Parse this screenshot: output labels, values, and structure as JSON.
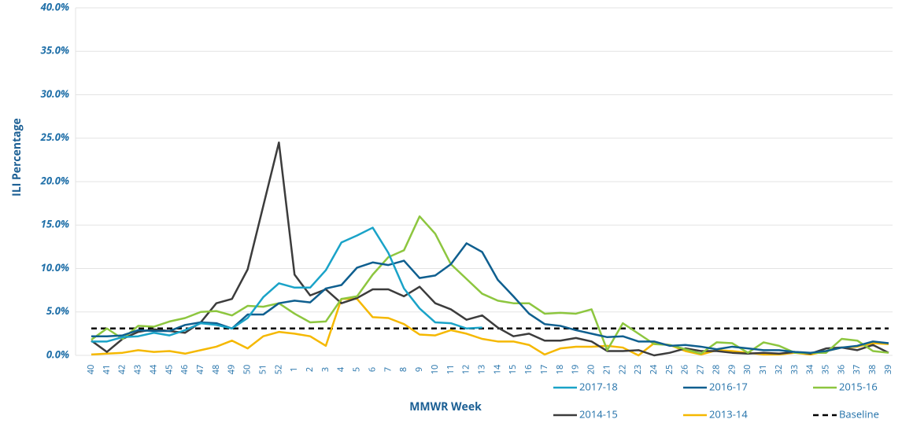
{
  "chart_data": {
    "type": "line",
    "y_label": "ILI Percentage",
    "x_label": "MMWR Week",
    "categories": [
      "40",
      "41",
      "42",
      "43",
      "44",
      "45",
      "46",
      "47",
      "48",
      "49",
      "50",
      "51",
      "52",
      "1",
      "2",
      "3",
      "4",
      "5",
      "6",
      "7",
      "8",
      "9",
      "10",
      "11",
      "12",
      "13",
      "14",
      "15",
      "16",
      "17",
      "18",
      "19",
      "20",
      "21",
      "22",
      "23",
      "24",
      "25",
      "26",
      "27",
      "28",
      "29",
      "30",
      "31",
      "32",
      "33",
      "34",
      "35",
      "36",
      "37",
      "38",
      "39"
    ],
    "series": [
      {
        "name": "2017-18",
        "color": "#1aa3c8",
        "values": [
          1.6,
          1.6,
          2.1,
          2.2,
          2.6,
          2.3,
          2.9,
          3.7,
          3.5,
          3.1,
          4.3,
          6.7,
          8.3,
          7.8,
          7.8,
          9.8,
          13.0,
          13.8,
          14.7,
          11.8,
          7.7,
          5.4,
          3.8,
          3.7,
          3.1,
          3.2,
          null,
          null,
          null,
          null,
          null,
          null,
          null,
          null,
          null,
          null,
          null,
          null,
          null,
          null,
          null,
          null,
          null,
          null,
          null,
          null,
          null,
          null,
          null,
          null,
          null,
          null
        ]
      },
      {
        "name": "2016-17",
        "color": "#0f5f8f",
        "values": [
          2.2,
          2.2,
          2.3,
          2.9,
          2.8,
          2.8,
          3.5,
          3.8,
          3.7,
          3.1,
          4.7,
          4.7,
          6.0,
          6.3,
          6.1,
          7.7,
          8.1,
          10.1,
          10.7,
          10.4,
          10.9,
          8.9,
          9.2,
          10.5,
          12.9,
          11.9,
          8.7,
          6.8,
          4.8,
          3.6,
          3.4,
          2.9,
          2.5,
          2.1,
          2.2,
          1.6,
          1.6,
          1.1,
          1.2,
          1.0,
          0.7,
          1.0,
          0.8,
          0.6,
          0.6,
          0.4,
          0.3,
          0.5,
          0.9,
          1.1,
          1.6,
          1.4
        ]
      },
      {
        "name": "2015-16",
        "color": "#8dc63f",
        "values": [
          1.8,
          3.1,
          1.9,
          3.4,
          3.3,
          3.9,
          4.3,
          5.0,
          5.1,
          4.6,
          5.7,
          5.6,
          6.0,
          4.8,
          3.8,
          3.9,
          6.5,
          6.8,
          9.3,
          11.3,
          12.1,
          16.0,
          14.0,
          10.5,
          8.8,
          7.1,
          6.3,
          6.0,
          6.0,
          4.8,
          4.9,
          4.8,
          5.3,
          0.6,
          3.7,
          2.5,
          1.3,
          1.2,
          0.7,
          0.2,
          1.5,
          1.4,
          0.3,
          1.5,
          1.1,
          0.3,
          0.3,
          0.3,
          1.9,
          1.7,
          0.5,
          0.3
        ]
      },
      {
        "name": "2014-15",
        "color": "#3c3c3c",
        "values": [
          1.7,
          0.4,
          1.9,
          2.7,
          3.0,
          2.8,
          2.6,
          3.8,
          6.0,
          6.5,
          9.9,
          17.2,
          24.5,
          9.3,
          6.9,
          7.6,
          6.0,
          6.6,
          7.6,
          7.6,
          6.8,
          7.9,
          6.0,
          5.3,
          4.1,
          4.6,
          3.2,
          2.2,
          2.5,
          1.7,
          1.7,
          2.0,
          1.6,
          0.5,
          0.5,
          0.6,
          0.0,
          0.3,
          0.8,
          0.5,
          0.5,
          0.3,
          0.2,
          0.3,
          0.2,
          0.4,
          0.2,
          0.8,
          0.9,
          0.6,
          1.2,
          0.3
        ]
      },
      {
        "name": "2013-14",
        "color": "#f5b800",
        "values": [
          0.1,
          0.2,
          0.3,
          0.6,
          0.4,
          0.5,
          0.2,
          0.6,
          1.0,
          1.7,
          0.8,
          2.2,
          2.7,
          2.5,
          2.2,
          1.1,
          6.5,
          6.5,
          4.4,
          4.3,
          3.6,
          2.4,
          2.3,
          2.9,
          2.5,
          1.9,
          1.6,
          1.6,
          1.2,
          0.1,
          0.8,
          1.0,
          1.0,
          1.1,
          0.9,
          0.0,
          1.4,
          1.2,
          0.5,
          0.1,
          0.6,
          0.5,
          0.3,
          0.1,
          0.1,
          0.3,
          0.1,
          0.5,
          0.9,
          1.0,
          1.4,
          1.3
        ]
      }
    ],
    "baseline": {
      "name": "Baseline",
      "value": 3.1,
      "color": "#000000"
    },
    "ylim": [
      0,
      40
    ],
    "yticks": [
      {
        "value": 0,
        "label": "0.0%"
      },
      {
        "value": 5,
        "label": "5.0%"
      },
      {
        "value": 10,
        "label": "10.0%"
      },
      {
        "value": 15,
        "label": "15.0%"
      },
      {
        "value": 20,
        "label": "20.0%"
      },
      {
        "value": 25,
        "label": "25.0%"
      },
      {
        "value": 30,
        "label": "30.0%"
      },
      {
        "value": 35,
        "label": "35.0%"
      },
      {
        "value": 40,
        "label": "40.0%"
      }
    ],
    "grid": true
  }
}
